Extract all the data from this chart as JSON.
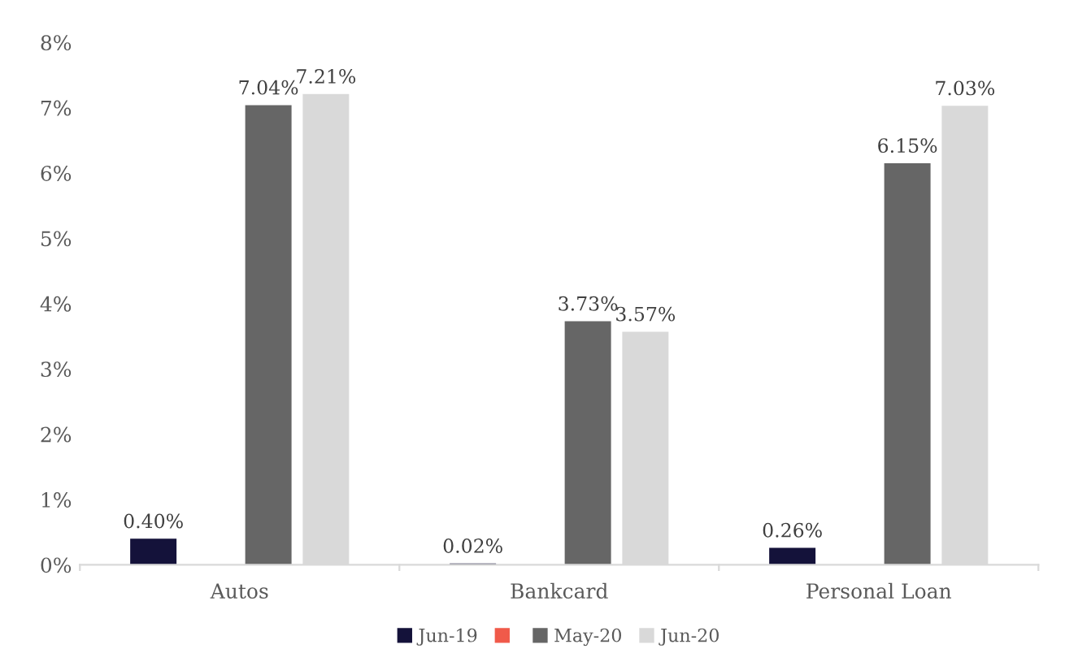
{
  "chart_data": {
    "type": "bar",
    "categories": [
      "Autos",
      "Bankcard",
      "Personal Loan"
    ],
    "series": [
      {
        "name": "Jun-19",
        "color": "#14123a",
        "values": [
          0.4,
          0.02,
          0.26
        ],
        "value_labels": [
          "0.40%",
          "0.02%",
          "0.26%"
        ]
      },
      {
        "color": "#f05a4a",
        "values": [
          null,
          null,
          null
        ]
      },
      {
        "name": "May-20",
        "color": "#666666",
        "values": [
          7.04,
          3.73,
          6.15
        ],
        "value_labels": [
          "7.04%",
          "3.73%",
          "6.15%"
        ]
      },
      {
        "name": "Jun-20",
        "color": "#d9d9d9",
        "values": [
          7.21,
          3.57,
          7.03
        ],
        "value_labels": [
          "7.21%",
          "3.57%",
          "7.03%"
        ]
      }
    ],
    "ylim": [
      0,
      8
    ],
    "yticks": [
      {
        "value": 0,
        "label": "0%"
      },
      {
        "value": 1,
        "label": "1%"
      },
      {
        "value": 2,
        "label": "2%"
      },
      {
        "value": 3,
        "label": "3%"
      },
      {
        "value": 4,
        "label": "4%"
      },
      {
        "value": 5,
        "label": "5%"
      },
      {
        "value": 6,
        "label": "6%"
      },
      {
        "value": 7,
        "label": "7%"
      },
      {
        "value": 8,
        "label": "8%"
      }
    ],
    "grid": false,
    "legend": "bottom"
  }
}
